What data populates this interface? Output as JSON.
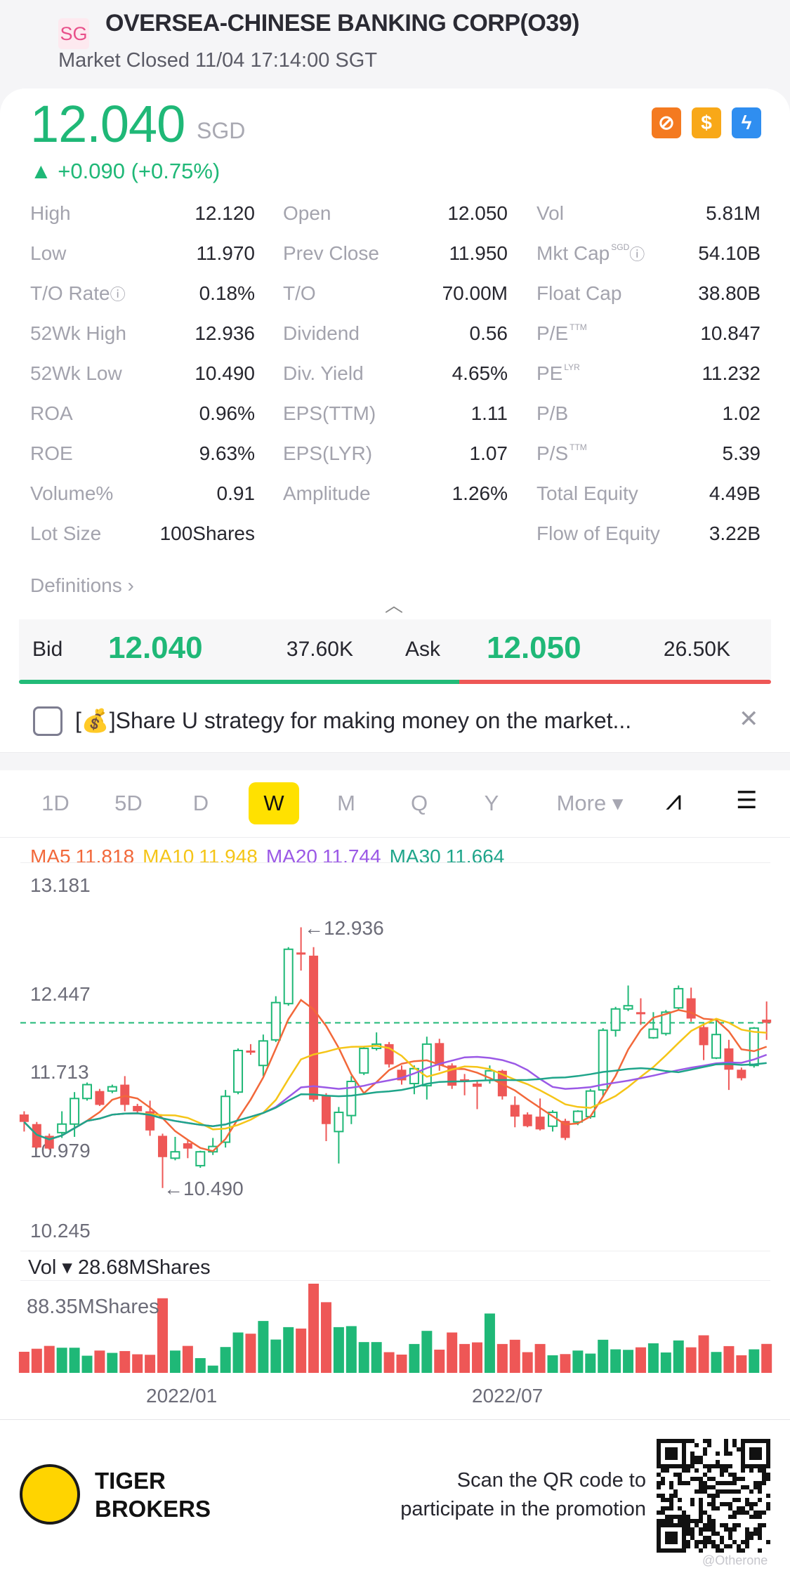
{
  "header": {
    "market_badge": "SG",
    "title": "OVERSEA-CHINESE BANKING CORP(O39)",
    "status": "Market Closed 11/04 17:14:00 SGT"
  },
  "quote": {
    "price": "12.040",
    "currency": "SGD",
    "change": "▲ +0.090 (+0.75%)",
    "up_color": "#1fb877",
    "down_color": "#ee5756",
    "icons": [
      "no-short-icon",
      "dollar-icon",
      "lightning-level1-icon"
    ]
  },
  "stats": [
    [
      {
        "label": "High",
        "value": "12.120"
      },
      {
        "label": "Open",
        "value": "12.050"
      },
      {
        "label": "Vol",
        "value": "5.81M"
      }
    ],
    [
      {
        "label": "Low",
        "value": "11.970"
      },
      {
        "label": "Prev Close",
        "value": "11.950"
      },
      {
        "label": "Mkt Cap",
        "sup": "SGD",
        "info": "ⓘ",
        "value": "54.10B"
      }
    ],
    [
      {
        "label": "T/O Rate",
        "info": "ⓘ",
        "value": "0.18%"
      },
      {
        "label": "T/O",
        "value": "70.00M"
      },
      {
        "label": "Float Cap",
        "value": "38.80B"
      }
    ],
    [
      {
        "label": "52Wk High",
        "value": "12.936"
      },
      {
        "label": "Dividend",
        "value": "0.56"
      },
      {
        "label": "P/E",
        "sup": "TTM",
        "value": "10.847"
      }
    ],
    [
      {
        "label": "52Wk Low",
        "value": "10.490"
      },
      {
        "label": "Div. Yield",
        "value": "4.65%"
      },
      {
        "label": "PE",
        "sup": "LYR",
        "value": "11.232"
      }
    ],
    [
      {
        "label": "ROA",
        "value": "0.96%"
      },
      {
        "label": "EPS(TTM)",
        "value": "1.11"
      },
      {
        "label": "P/B",
        "value": "1.02"
      }
    ],
    [
      {
        "label": "ROE",
        "value": "9.63%"
      },
      {
        "label": "EPS(LYR)",
        "value": "1.07"
      },
      {
        "label": "P/S",
        "sup": "TTM",
        "value": "5.39"
      }
    ],
    [
      {
        "label": "Volume%",
        "value": "0.91"
      },
      {
        "label": "Amplitude",
        "value": "1.26%"
      },
      {
        "label": "Total Equity",
        "value": "4.49B"
      }
    ],
    [
      {
        "label": "Lot Size",
        "value": "100Shares"
      },
      null,
      {
        "label": "Flow of Equity",
        "value": "3.22B"
      }
    ]
  ],
  "definitions": "Definitions ›",
  "bidask": {
    "bid_label": "Bid",
    "bid_price": "12.040",
    "bid_size": "37.60K",
    "ask_label": "Ask",
    "ask_price": "12.050",
    "ask_size": "26.50K",
    "bid_fraction": 0.586
  },
  "banner": {
    "text": "[💰]Share U strategy for making money on the market...",
    "close": "✕"
  },
  "tabs": {
    "items": [
      "1D",
      "5D",
      "D",
      "W",
      "M",
      "Q",
      "Y",
      "More ▾"
    ],
    "active": "W"
  },
  "chart_data": {
    "type": "candlestick",
    "ma": [
      {
        "name": "MA5",
        "value": "11.818",
        "color": "#f2683a"
      },
      {
        "name": "MA10",
        "value": "11.948",
        "color": "#f5c518"
      },
      {
        "name": "MA20",
        "value": "11.744",
        "color": "#9b59e6"
      },
      {
        "name": "MA30",
        "value": "11.664",
        "color": "#1fa58a"
      }
    ],
    "y_ticks": [
      "13.181",
      "12.447",
      "11.713",
      "10.979",
      "10.245"
    ],
    "ylim": [
      10.245,
      13.181
    ],
    "high_annotation": "←12.936",
    "low_annotation": "←10.490",
    "last_price": 12.04,
    "ohlc": [
      [
        11.18,
        11.21,
        11.02,
        11.11
      ],
      [
        11.09,
        11.11,
        10.86,
        10.87
      ],
      [
        10.98,
        11.0,
        10.85,
        10.86
      ],
      [
        11.01,
        11.21,
        10.96,
        11.09
      ],
      [
        11.09,
        11.39,
        10.97,
        11.33
      ],
      [
        11.33,
        11.48,
        11.31,
        11.46
      ],
      [
        11.4,
        11.42,
        11.26,
        11.27
      ],
      [
        11.4,
        11.46,
        11.38,
        11.44
      ],
      [
        11.46,
        11.54,
        11.21,
        11.27
      ],
      [
        11.26,
        11.28,
        11.19,
        11.21
      ],
      [
        11.21,
        11.31,
        10.98,
        11.03
      ],
      [
        10.98,
        11.0,
        10.49,
        10.78
      ],
      [
        10.77,
        10.97,
        10.75,
        10.83
      ],
      [
        10.91,
        10.94,
        10.77,
        10.86
      ],
      [
        10.7,
        10.84,
        10.68,
        10.83
      ],
      [
        10.83,
        10.96,
        10.8,
        10.88
      ],
      [
        10.92,
        11.41,
        10.87,
        11.35
      ],
      [
        11.39,
        11.8,
        11.37,
        11.78
      ],
      [
        11.78,
        11.84,
        11.74,
        11.76
      ],
      [
        11.64,
        11.93,
        11.54,
        11.87
      ],
      [
        11.88,
        12.29,
        11.86,
        12.23
      ],
      [
        12.22,
        12.75,
        12.2,
        12.73
      ],
      [
        12.7,
        12.936,
        12.53,
        12.68
      ],
      [
        12.67,
        12.75,
        11.3,
        11.32
      ],
      [
        11.36,
        11.38,
        10.93,
        11.09
      ],
      [
        11.02,
        11.25,
        10.72,
        11.2
      ],
      [
        11.17,
        11.54,
        11.09,
        11.49
      ],
      [
        11.57,
        11.82,
        11.55,
        11.8
      ],
      [
        11.8,
        11.95,
        11.78,
        11.84
      ],
      [
        11.84,
        11.86,
        11.62,
        11.65
      ],
      [
        11.6,
        11.64,
        11.46,
        11.5
      ],
      [
        11.47,
        11.64,
        11.37,
        11.61
      ],
      [
        11.45,
        11.91,
        11.32,
        11.84
      ],
      [
        11.85,
        11.89,
        11.59,
        11.64
      ],
      [
        11.64,
        11.66,
        11.42,
        11.45
      ],
      [
        11.51,
        11.56,
        11.36,
        11.49
      ],
      [
        11.47,
        11.49,
        11.23,
        11.44
      ],
      [
        11.5,
        11.64,
        11.47,
        11.59
      ],
      [
        11.59,
        11.6,
        11.32,
        11.35
      ],
      [
        11.27,
        11.35,
        11.06,
        11.16
      ],
      [
        11.18,
        11.2,
        11.06,
        11.07
      ],
      [
        11.16,
        11.33,
        11.03,
        11.04
      ],
      [
        11.07,
        11.22,
        11.02,
        11.2
      ],
      [
        11.12,
        11.14,
        10.94,
        10.96
      ],
      [
        11.11,
        11.22,
        11.08,
        11.21
      ],
      [
        11.16,
        11.42,
        11.14,
        11.4
      ],
      [
        11.41,
        11.99,
        11.35,
        11.97
      ],
      [
        11.97,
        12.19,
        11.91,
        12.17
      ],
      [
        12.17,
        12.39,
        12.15,
        12.2
      ],
      [
        12.14,
        12.27,
        12.02,
        12.12
      ],
      [
        11.9,
        12.14,
        11.89,
        11.98
      ],
      [
        11.94,
        12.16,
        11.92,
        12.14
      ],
      [
        12.18,
        12.39,
        12.16,
        12.36
      ],
      [
        12.27,
        12.37,
        12.05,
        12.08
      ],
      [
        12.0,
        12.02,
        11.69,
        11.83
      ],
      [
        11.71,
        12.08,
        11.7,
        11.93
      ],
      [
        11.8,
        11.88,
        11.41,
        11.6
      ],
      [
        11.6,
        11.62,
        11.5,
        11.52
      ],
      [
        11.64,
        12.0,
        11.62,
        11.99
      ],
      [
        12.07,
        12.24,
        11.88,
        12.04
      ]
    ],
    "volume_label": "Vol ▾ 28.68MShares",
    "volume_max_label": "88.35MShares",
    "volume_max": 88.35,
    "volumes": [
      20.9,
      23.9,
      26.7,
      24.9,
      24.9,
      17.0,
      22.1,
      19.8,
      21.6,
      18.4,
      17.9,
      73.9,
      22.1,
      26.7,
      14.6,
      7.2,
      25.6,
      40.0,
      38.8,
      51.4,
      33.0,
      45.3,
      43.9,
      88.35,
      70.0,
      45.3,
      46.3,
      30.5,
      30.5,
      20.5,
      18.1,
      28.6,
      41.6,
      23.0,
      40.0,
      28.6,
      30.2,
      58.8,
      28.6,
      32.8,
      20.5,
      28.6,
      17.4,
      18.6,
      22.1,
      19.1,
      32.8,
      23.3,
      22.8,
      25.3,
      29.3,
      20.2,
      32.1,
      25.3,
      37.2,
      20.7,
      26.5,
      17.4,
      23.3,
      28.68
    ],
    "x_ticks": [
      "2022/01",
      "2022/07"
    ]
  },
  "footer": {
    "brand_line1": "TIGER",
    "brand_line2": "BROKERS",
    "promo_line1": "Scan the QR code to",
    "promo_line2": "participate in the promotion",
    "watermark": "@Otherone"
  }
}
